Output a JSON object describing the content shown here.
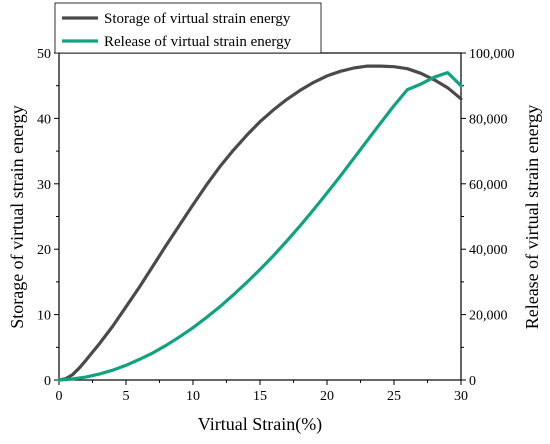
{
  "chart_data": {
    "type": "line",
    "title": "",
    "xlabel": "Virtual Strain(%)",
    "ylabel_left": "Storage of virtual strain energy",
    "ylabel_right": "Release of virtual strain energy",
    "xlim": [
      0,
      30
    ],
    "ylim_left": [
      0,
      50
    ],
    "ylim_right": [
      0,
      100000
    ],
    "x_ticks": [
      "0",
      "5",
      "10",
      "15",
      "20",
      "25",
      "30"
    ],
    "y_left_ticks": [
      "0",
      "10",
      "20",
      "30",
      "40",
      "50"
    ],
    "y_right_ticks": [
      "0",
      "20,000",
      "40,000",
      "60,000",
      "80,000",
      "100,000"
    ],
    "legend_position": "top-left",
    "grid": false,
    "series": [
      {
        "name": "Storage of virtual strain energy",
        "axis": "left",
        "color": "#4a4a4a",
        "x": [
          0,
          0.5,
          1,
          1.5,
          2,
          3,
          4,
          5,
          6,
          7,
          8,
          9,
          10,
          11,
          12,
          13,
          14,
          15,
          16,
          17,
          18,
          19,
          20,
          21,
          22,
          23,
          24,
          25,
          26,
          27,
          28,
          29,
          30
        ],
        "y": [
          0,
          0.2,
          0.8,
          1.8,
          3,
          5.5,
          8.2,
          11.2,
          14.2,
          17.4,
          20.6,
          23.7,
          26.8,
          29.8,
          32.6,
          35.1,
          37.4,
          39.5,
          41.3,
          42.9,
          44.3,
          45.5,
          46.5,
          47.2,
          47.7,
          48,
          48,
          47.9,
          47.6,
          46.9,
          45.9,
          44.7,
          43
        ]
      },
      {
        "name": "Release of virtual strain energy",
        "axis": "right",
        "color": "#10a37f",
        "x": [
          0,
          1,
          2,
          3,
          4,
          5,
          6,
          7,
          8,
          9,
          10,
          11,
          12,
          13,
          14,
          15,
          16,
          17,
          18,
          19,
          20,
          21,
          22,
          23,
          24,
          25,
          26,
          27,
          28,
          29,
          30
        ],
        "y": [
          0,
          300,
          900,
          1800,
          3000,
          4500,
          6300,
          8300,
          10600,
          13200,
          16000,
          19100,
          22400,
          26000,
          29800,
          33800,
          38000,
          42500,
          47200,
          52100,
          57200,
          62400,
          67800,
          73200,
          78600,
          83900,
          88800,
          90500,
          92600,
          94000,
          90000
        ]
      }
    ]
  }
}
